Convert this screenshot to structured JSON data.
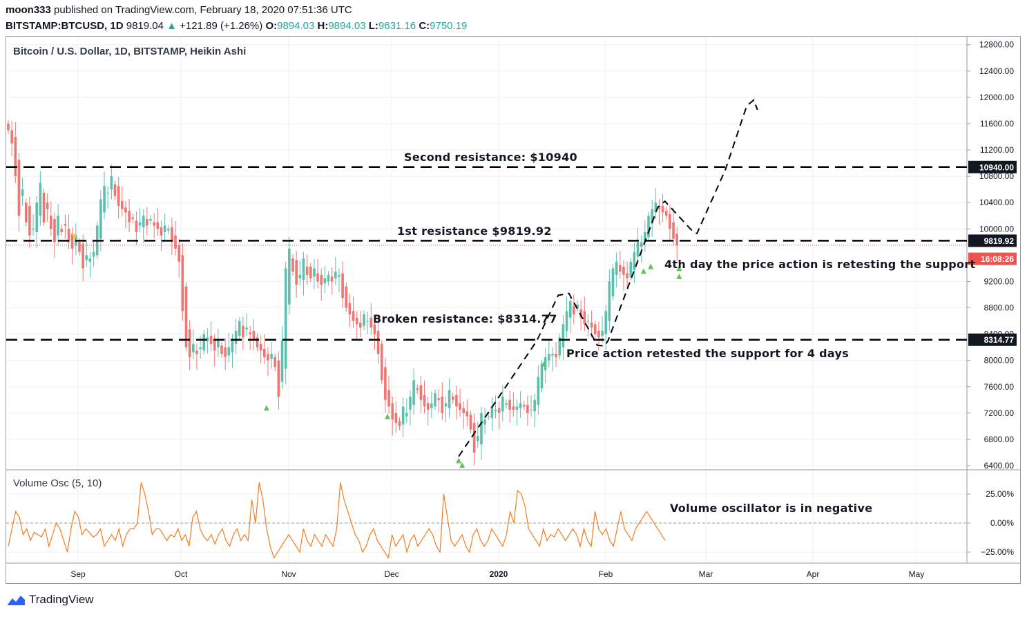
{
  "header": {
    "author": "moon333",
    "published": "published on TradingView.com, February 18, 2020 07:51:36 UTC",
    "symbol": "BITSTAMP:BTCUSD, 1D",
    "price": "9819.04",
    "change": "+121.89 (+1.26%)",
    "o_label": "O:",
    "o_value": "9894.03",
    "h_label": "H:",
    "h_value": "9894.03",
    "l_label": "L:",
    "l_value": "9631.16",
    "c_label": "C:",
    "c_value": "9750.19"
  },
  "brand": "TradingView",
  "chart_data": [
    {
      "type": "candlestick",
      "title": "Bitcoin / U.S. Dollar, 1D, BITSTAMP, Heikin Ashi",
      "y_ticks": [
        "12800.00",
        "12400.00",
        "12000.00",
        "11600.00",
        "11200.00",
        "10800.00",
        "10400.00",
        "10000.00",
        "9200.00",
        "8800.00",
        "8400.00",
        "8000.00",
        "7600.00",
        "7200.00",
        "6800.00",
        "6400.00"
      ],
      "y_tick_values": [
        12800,
        12400,
        12000,
        11600,
        11200,
        10800,
        10400,
        10000,
        9200,
        8800,
        8400,
        8000,
        7600,
        7200,
        6800,
        6400
      ],
      "ylim": [
        6400,
        12800
      ],
      "x_ticks": [
        "Sep",
        "Oct",
        "Nov",
        "Dec",
        "2020",
        "Feb",
        "Mar",
        "Apr",
        "May"
      ],
      "price_labels": [
        {
          "text": "10940.00",
          "value": 10940,
          "style": "dark"
        },
        {
          "text": "9819.92",
          "value": 9819.92,
          "style": "dark"
        },
        {
          "text": "16:08:26",
          "value": 9650,
          "style": "red"
        },
        {
          "text": "8314.77",
          "value": 8314.77,
          "style": "dark"
        }
      ],
      "levels": [
        {
          "name": "Second resistance",
          "value": 10940
        },
        {
          "name": "1st resistance",
          "value": 9819.92
        },
        {
          "name": "Broken resistance",
          "value": 8314.77
        }
      ],
      "current_price": 9750.19,
      "annotations": [
        "Second resistance: $10940",
        "1st resistance $9819.92",
        "4th day the price action is retesting the support",
        "Broken resistance: $8314.77",
        "Price action retested the support for 4 days"
      ],
      "projection_path": [
        {
          "date": "2019-12-17",
          "price": 6540
        },
        {
          "date": "2020-01-08",
          "price": 8300
        },
        {
          "date": "2020-01-14",
          "price": 8990
        },
        {
          "date": "2020-01-17",
          "price": 9020
        },
        {
          "date": "2020-01-25",
          "price": 8230
        },
        {
          "date": "2020-01-27",
          "price": 8220
        },
        {
          "date": "2020-01-28",
          "price": 8300
        },
        {
          "date": "2020-02-11",
          "price": 10330
        },
        {
          "date": "2020-02-13",
          "price": 10420
        },
        {
          "date": "2020-02-21",
          "price": 9950
        },
        {
          "date": "2020-02-22",
          "price": 9930
        },
        {
          "date": "2020-03-01",
          "price": 10900
        },
        {
          "date": "2020-03-07",
          "price": 11870
        },
        {
          "date": "2020-03-09",
          "price": 11960
        },
        {
          "date": "2020-03-10",
          "price": 11810
        }
      ],
      "candles_close": [
        11500,
        11300,
        10800,
        10200,
        10600,
        10100,
        9900,
        10000,
        10400,
        10700,
        10100,
        10300,
        10000,
        9800,
        10200,
        9950,
        10050,
        9800,
        9700,
        9900,
        9650,
        9400,
        9600,
        9550,
        9650,
        10050,
        10450,
        10650,
        10550,
        10800,
        10500,
        10350,
        10300,
        10250,
        10100,
        10150,
        9950,
        10100,
        10200,
        10050,
        10150,
        10050,
        10000,
        9900,
        10050,
        10000,
        9800,
        9700,
        9500,
        8750,
        8200,
        8050,
        8250,
        8100,
        8200,
        8400,
        8350,
        8250,
        8150,
        8300,
        8100,
        8050,
        8200,
        8300,
        8450,
        8600,
        8350,
        8500,
        8400,
        8300,
        8200,
        8150,
        8050,
        8000,
        8100,
        7900,
        7450,
        8300,
        9400,
        9700,
        9350,
        9150,
        9300,
        9550,
        9300,
        9250,
        9400,
        9200,
        9150,
        9250,
        9300,
        9200,
        9350,
        9300,
        8950,
        8800,
        8700,
        8600,
        8550,
        8500,
        8700,
        8600,
        8500,
        8400,
        8100,
        7700,
        7400,
        7300,
        7100,
        7050,
        7000,
        7300,
        7200,
        7450,
        7700,
        7550,
        7400,
        7300,
        7250,
        7350,
        7500,
        7400,
        7200,
        7350,
        7550,
        7400,
        7300,
        7250,
        7200,
        7150,
        6950,
        6600,
        6850,
        7200,
        7100,
        7150,
        7300,
        7250,
        7200,
        7450,
        7350,
        7250,
        7250,
        7300,
        7350,
        7300,
        7200,
        7250,
        7400,
        7750,
        7950,
        8050,
        8100,
        8100,
        8050,
        8350,
        8550,
        8750,
        8900,
        8700,
        8850,
        8650,
        8550,
        8600,
        8500,
        8400,
        8350,
        8450,
        8750,
        9200,
        9400,
        9500,
        9350,
        9300,
        9250,
        9500,
        9650,
        9800,
        9800,
        9950,
        10200,
        10300,
        10400,
        10300,
        10250,
        10200,
        10000,
        9850,
        9750
      ]
    },
    {
      "type": "line",
      "title": "Volume Osc (5, 10)",
      "y_ticks": [
        "25.00%",
        "0.00%",
        "−25.00%"
      ],
      "y_tick_values": [
        25,
        0,
        -25
      ],
      "ylim": [
        -32,
        40
      ],
      "annotations": [
        "Volume oscillator is in negative"
      ],
      "series": [
        {
          "values": [
            -20,
            -5,
            10,
            5,
            -10,
            -5,
            -15,
            -8,
            -10,
            -12,
            -5,
            -20,
            -10,
            0,
            -5,
            -15,
            -25,
            -5,
            10,
            5,
            -10,
            -5,
            -8,
            -12,
            -10,
            -5,
            -20,
            -15,
            -10,
            -15,
            -5,
            -20,
            -10,
            -5,
            -5,
            0,
            35,
            25,
            10,
            -10,
            -5,
            -5,
            -10,
            -15,
            -10,
            -12,
            -5,
            -15,
            -10,
            -20,
            5,
            10,
            -5,
            -12,
            -15,
            -10,
            -18,
            -10,
            -5,
            -15,
            -20,
            -10,
            -5,
            -15,
            -10,
            -15,
            20,
            0,
            35,
            20,
            -5,
            -20,
            -30,
            -25,
            -20,
            -15,
            -10,
            -15,
            -20,
            -25,
            -5,
            -15,
            -20,
            -10,
            -15,
            -20,
            -10,
            -15,
            -20,
            -5,
            35,
            20,
            10,
            0,
            -10,
            -15,
            -25,
            -20,
            -10,
            -5,
            -15,
            -20,
            -25,
            -30,
            -10,
            -20,
            -15,
            -10,
            -25,
            -15,
            -10,
            -20,
            -15,
            -10,
            -5,
            -10,
            -20,
            -25,
            25,
            5,
            -15,
            -20,
            -15,
            -10,
            -20,
            -25,
            -10,
            -5,
            -15,
            -20,
            -15,
            -5,
            -10,
            -15,
            -20,
            -10,
            10,
            0,
            28,
            25,
            15,
            -5,
            -10,
            -15,
            -20,
            -5,
            -15,
            -10,
            -12,
            -5,
            -10,
            -15,
            -10,
            -5,
            -10,
            -20,
            -5,
            -15,
            -20,
            10,
            -5,
            -10,
            -5,
            -15,
            -20,
            -5,
            10,
            -5,
            -10,
            -15,
            -5,
            0,
            5,
            10,
            5,
            0,
            -5,
            -10,
            -15
          ]
        }
      ]
    }
  ]
}
